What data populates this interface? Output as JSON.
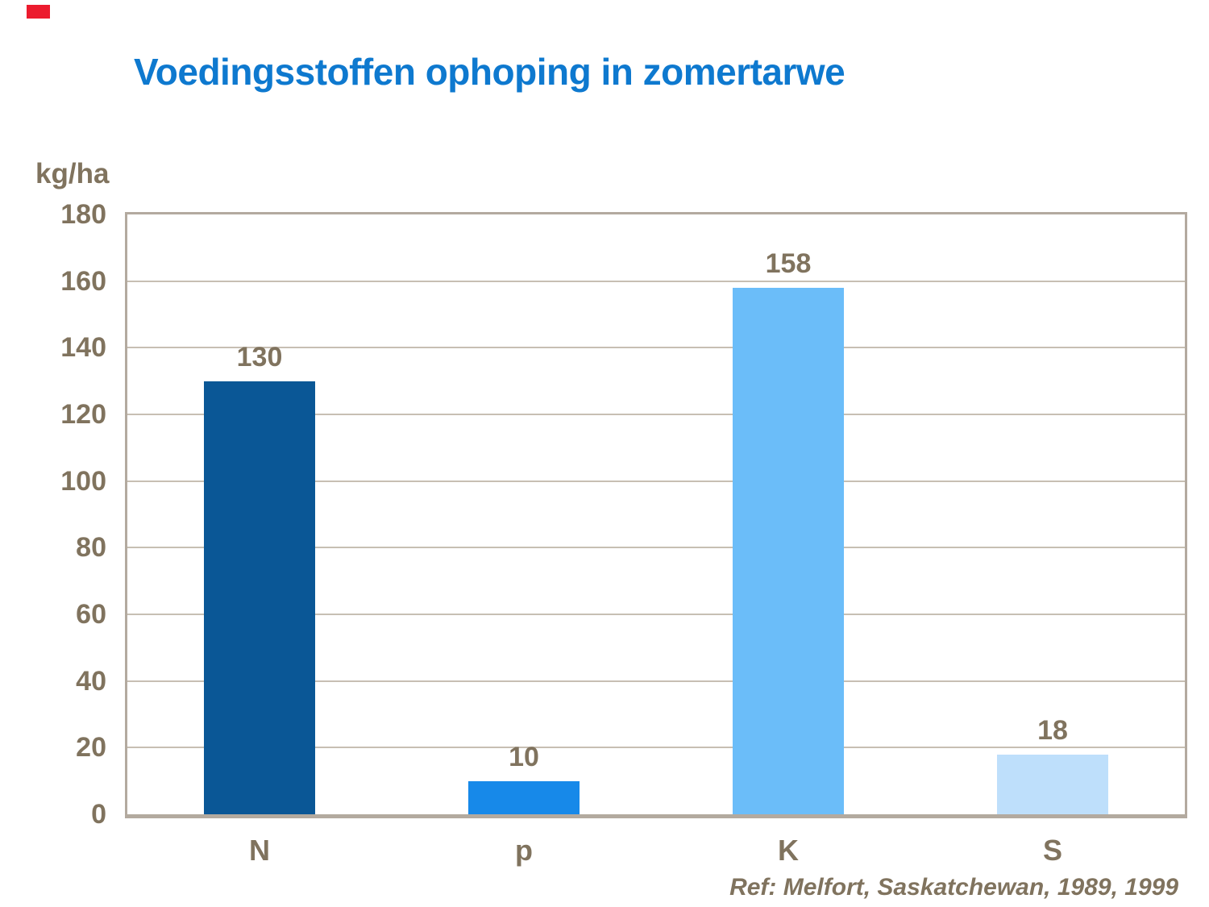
{
  "slide": {
    "title": "Voedingsstoffen ophoping in zomertarwe",
    "unit_label": "kg/ha",
    "reference": "Ref: Melfort, Saskatchewan, 1989, 1999"
  },
  "colors": {
    "title_blue": "#0e79cf",
    "axis_text_brown": "#80735e",
    "frame_tan": "#b3aa9f",
    "gridline_tan": "#c7bfb3",
    "corner_marker_red": "#ec1b2e",
    "background": "#ffffff"
  },
  "chart_data": {
    "type": "bar",
    "title": "Voedingsstoffen ophoping in zomertarwe",
    "xlabel": "",
    "ylabel": "kg/ha",
    "categories": [
      "N",
      "p",
      "K",
      "S"
    ],
    "values": [
      130,
      10,
      158,
      18
    ],
    "value_labels": [
      "130",
      "10",
      "158",
      "18"
    ],
    "bar_colors": [
      "#0a5796",
      "#1789e9",
      "#6bbdf9",
      "#bedffb"
    ],
    "ylim": [
      0,
      180
    ],
    "yticks": [
      0,
      20,
      40,
      60,
      80,
      100,
      120,
      140,
      160,
      180
    ],
    "grid": true,
    "legend": false,
    "annotation": "Ref: Melfort, Saskatchewan, 1989, 1999"
  }
}
